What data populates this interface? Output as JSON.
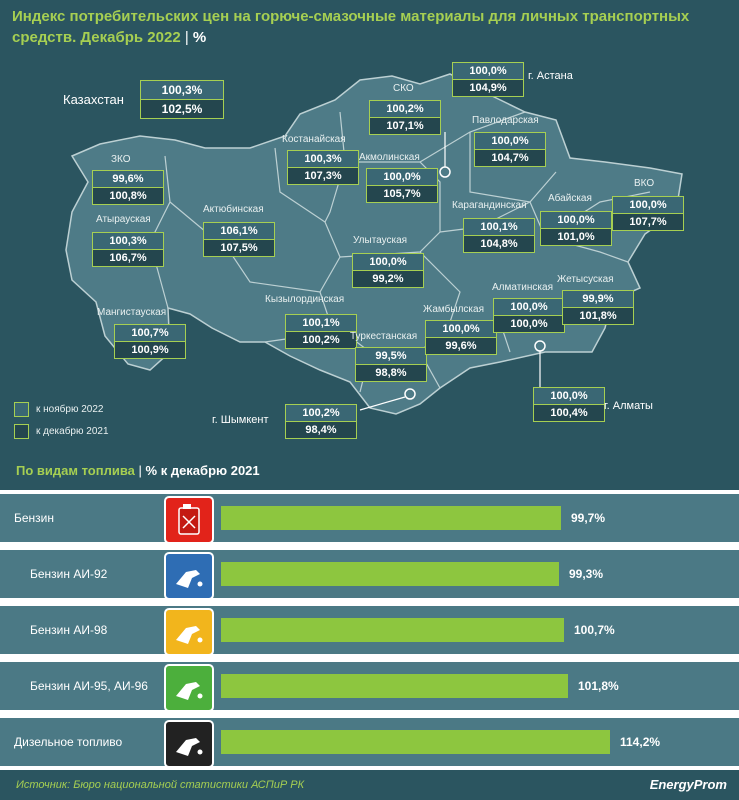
{
  "title": {
    "text": "Индекс потребительских цен на горюче-смазочные материалы для личных транспортных средств. Декабрь 2022",
    "separator": "|",
    "unit": "%"
  },
  "map": {
    "country": {
      "name": "Казахстан",
      "nov": "100,3%",
      "dec": "102,5%"
    },
    "regions": [
      {
        "key": "zko",
        "name": "ЗКО",
        "nov": "99,6%",
        "dec": "100,8%"
      },
      {
        "key": "atyrau",
        "name": "Атырауская",
        "nov": "100,3%",
        "dec": "106,7%"
      },
      {
        "key": "mangistau",
        "name": "Мангистауская",
        "nov": "100,7%",
        "dec": "100,9%"
      },
      {
        "key": "aktobe",
        "name": "Актюбинская",
        "nov": "106,1%",
        "dec": "107,5%"
      },
      {
        "key": "kostanay",
        "name": "Костанайская",
        "nov": "100,3%",
        "dec": "107,3%"
      },
      {
        "key": "sko",
        "name": "СКО",
        "nov": "100,2%",
        "dec": "107,1%"
      },
      {
        "key": "akmola",
        "name": "Акмолинская",
        "nov": "100,0%",
        "dec": "105,7%"
      },
      {
        "key": "pavlodar",
        "name": "Павлодарская",
        "nov": "100,0%",
        "dec": "104,7%"
      },
      {
        "key": "vko",
        "name": "ВКО",
        "nov": "100,0%",
        "dec": "107,7%"
      },
      {
        "key": "abay",
        "name": "Абайская",
        "nov": "100,0%",
        "dec": "101,0%"
      },
      {
        "key": "karaganda",
        "name": "Карагандинская",
        "nov": "100,1%",
        "dec": "104,8%"
      },
      {
        "key": "ulytau",
        "name": "Улытауская",
        "nov": "100,0%",
        "dec": "99,2%"
      },
      {
        "key": "kyzylorda",
        "name": "Кызылординская",
        "nov": "100,1%",
        "dec": "100,2%"
      },
      {
        "key": "turkestan",
        "name": "Туркестанская",
        "nov": "99,5%",
        "dec": "98,8%"
      },
      {
        "key": "zhambyl",
        "name": "Жамбылская",
        "nov": "100,0%",
        "dec": "99,6%"
      },
      {
        "key": "almaty_obl",
        "name": "Алматинская",
        "nov": "100,0%",
        "dec": "100,0%"
      },
      {
        "key": "zhetysu",
        "name": "Жетысуская",
        "nov": "99,9%",
        "dec": "101,8%"
      }
    ],
    "cities": [
      {
        "key": "astana",
        "name": "г. Астана",
        "nov": "100,0%",
        "dec": "104,9%"
      },
      {
        "key": "almaty",
        "name": "г. Алматы",
        "nov": "100,0%",
        "dec": "100,4%"
      },
      {
        "key": "shymkent",
        "name": "г. Шымкент",
        "nov": "100,2%",
        "dec": "98,4%"
      }
    ],
    "legend": {
      "nov": "к ноябрю 2022",
      "dec": "к декабрю 2021",
      "nov_color": "#3a6774",
      "dec_color": "#24464e"
    },
    "colors": {
      "land": "#4e7b87",
      "border": "#bcd0d3",
      "accent": "#a6cf52"
    }
  },
  "section": {
    "title": "По видам топлива",
    "separator": "|",
    "subtitle": "% к декабрю 2021"
  },
  "chart_data": {
    "type": "bar",
    "orientation": "horizontal",
    "categories": [
      "Бензин",
      "Бензин АИ-92",
      "Бензин АИ-98",
      "Бензин АИ-95, АИ-96",
      "Дизельное топливо"
    ],
    "values": [
      99.7,
      99.3,
      100.7,
      101.8,
      114.2
    ],
    "value_labels": [
      "99,7%",
      "99,3%",
      "100,7%",
      "101,8%",
      "114,2%"
    ],
    "icons": [
      {
        "name": "fuel-canister-icon",
        "color": "#e2231a"
      },
      {
        "name": "fuel-nozzle-icon",
        "color": "#2e6db4"
      },
      {
        "name": "fuel-nozzle-icon",
        "color": "#f2b51c"
      },
      {
        "name": "fuel-nozzle-icon",
        "color": "#4caf3c"
      },
      {
        "name": "fuel-nozzle-icon",
        "color": "#222222"
      }
    ],
    "bar_color": "#8dc63f"
  },
  "footer": {
    "source": "Источник: Бюро национальной статистики АСПиР РК",
    "brand": "EnergyProm"
  }
}
